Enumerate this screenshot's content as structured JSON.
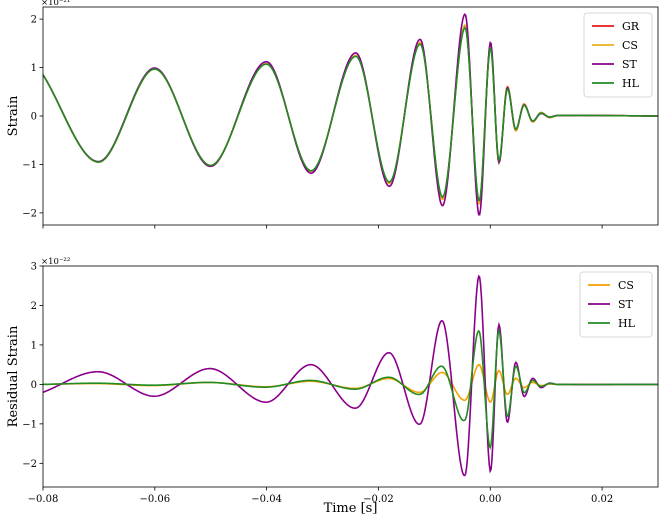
{
  "chart_data": [
    {
      "type": "line",
      "panel": "top",
      "ylabel": "Strain",
      "xlabel": "",
      "multiplier": "×10⁻²¹",
      "xlim": [
        -0.08,
        0.03
      ],
      "ylim": [
        -2.25,
        2.25
      ],
      "yticks": [
        -2,
        -1,
        0,
        1,
        2
      ],
      "xticks": [
        -0.08,
        -0.06,
        -0.04,
        -0.02,
        0.0,
        0.02
      ],
      "show_xtick_labels": false,
      "legend": "top-right",
      "series": [
        {
          "name": "GR",
          "color": "#e41a1c",
          "x": [
            -0.08,
            -0.07,
            -0.06,
            -0.05,
            -0.04,
            -0.032,
            -0.024,
            -0.018,
            -0.0125,
            -0.0085,
            -0.0045,
            -0.002,
            0.0,
            0.0015,
            0.003,
            0.0045,
            0.006,
            0.0075,
            0.009,
            0.0105,
            0.012,
            0.03
          ],
          "y": [
            0.85,
            -0.95,
            0.97,
            -1.02,
            1.08,
            -1.14,
            1.24,
            -1.38,
            1.5,
            -1.7,
            1.85,
            -1.8,
            1.45,
            -0.95,
            0.6,
            -0.3,
            0.25,
            -0.12,
            0.07,
            -0.03,
            0.01,
            0.0
          ]
        },
        {
          "name": "CS",
          "color": "#e8b020",
          "x": [
            -0.08,
            -0.07,
            -0.06,
            -0.05,
            -0.04,
            -0.032,
            -0.024,
            -0.018,
            -0.0125,
            -0.0085,
            -0.0045,
            -0.002,
            0.0,
            0.0015,
            0.003,
            0.0045,
            0.006,
            0.0075,
            0.009,
            0.0105,
            0.012,
            0.03
          ],
          "y": [
            0.85,
            -0.95,
            0.97,
            -1.02,
            1.08,
            -1.14,
            1.25,
            -1.39,
            1.52,
            -1.72,
            1.88,
            -1.82,
            1.47,
            -0.96,
            0.6,
            -0.3,
            0.25,
            -0.12,
            0.07,
            -0.03,
            0.01,
            0.0
          ]
        },
        {
          "name": "ST",
          "color": "#8b008b",
          "x": [
            -0.08,
            -0.07,
            -0.06,
            -0.05,
            -0.04,
            -0.032,
            -0.024,
            -0.018,
            -0.0125,
            -0.0085,
            -0.0045,
            -0.002,
            0.0,
            0.0015,
            0.003,
            0.0045,
            0.006,
            0.0075,
            0.009,
            0.0105,
            0.012,
            0.03
          ],
          "y": [
            0.85,
            -0.94,
            0.99,
            -1.04,
            1.12,
            -1.18,
            1.3,
            -1.45,
            1.58,
            -1.85,
            2.1,
            -2.05,
            1.52,
            -0.95,
            0.58,
            -0.27,
            0.23,
            -0.1,
            0.05,
            -0.02,
            0.01,
            0.0
          ]
        },
        {
          "name": "HL",
          "color": "#228b22",
          "x": [
            -0.08,
            -0.07,
            -0.06,
            -0.05,
            -0.04,
            -0.032,
            -0.024,
            -0.018,
            -0.0125,
            -0.0085,
            -0.0045,
            -0.002,
            0.0,
            0.0015,
            0.003,
            0.0045,
            0.006,
            0.0075,
            0.009,
            0.0105,
            0.012,
            0.03
          ],
          "y": [
            0.85,
            -0.95,
            0.97,
            -1.02,
            1.07,
            -1.13,
            1.23,
            -1.36,
            1.48,
            -1.67,
            1.82,
            -1.75,
            1.4,
            -0.9,
            0.55,
            -0.27,
            0.22,
            -0.1,
            0.06,
            -0.02,
            0.01,
            0.0
          ]
        }
      ]
    },
    {
      "type": "line",
      "panel": "bottom",
      "ylabel": "Residual Strain",
      "xlabel": "Time [s]",
      "multiplier": "×10⁻²²",
      "xlim": [
        -0.08,
        0.03
      ],
      "ylim": [
        -2.6,
        3.0
      ],
      "yticks": [
        -2,
        -1,
        0,
        1,
        2,
        3
      ],
      "xticks": [
        -0.08,
        -0.06,
        -0.04,
        -0.02,
        0.0,
        0.02
      ],
      "xtick_labels": [
        "−0.08",
        "−0.06",
        "−0.04",
        "−0.02",
        "0.00",
        "0.02"
      ],
      "show_xtick_labels": true,
      "legend": "top-right",
      "series": [
        {
          "name": "CS",
          "color": "#f5a000",
          "x": [
            -0.08,
            -0.07,
            -0.06,
            -0.05,
            -0.04,
            -0.032,
            -0.024,
            -0.018,
            -0.0125,
            -0.0085,
            -0.0045,
            -0.002,
            0.0,
            0.0015,
            0.003,
            0.0045,
            0.006,
            0.0075,
            0.009,
            0.0105,
            0.012,
            0.03
          ],
          "y": [
            0.0,
            0.02,
            -0.03,
            0.05,
            -0.06,
            0.08,
            -0.1,
            0.15,
            -0.2,
            0.3,
            -0.4,
            0.5,
            -0.45,
            0.35,
            -0.25,
            0.15,
            -0.08,
            0.05,
            -0.03,
            0.01,
            0.0,
            0.0
          ]
        },
        {
          "name": "ST",
          "color": "#8b008b",
          "x": [
            -0.08,
            -0.07,
            -0.06,
            -0.05,
            -0.04,
            -0.032,
            -0.024,
            -0.018,
            -0.0125,
            -0.0085,
            -0.0045,
            -0.002,
            0.0,
            0.0015,
            0.003,
            0.0045,
            0.006,
            0.0075,
            0.009,
            0.0105,
            0.012,
            0.03
          ],
          "y": [
            -0.2,
            0.32,
            -0.3,
            0.4,
            -0.45,
            0.5,
            -0.6,
            0.8,
            -1.0,
            1.6,
            -2.3,
            2.75,
            -2.2,
            1.5,
            -0.95,
            0.55,
            -0.3,
            0.15,
            -0.08,
            0.03,
            0.0,
            0.0
          ]
        },
        {
          "name": "HL",
          "color": "#228b22",
          "x": [
            -0.08,
            -0.07,
            -0.06,
            -0.05,
            -0.04,
            -0.032,
            -0.024,
            -0.018,
            -0.0125,
            -0.0085,
            -0.0045,
            -0.002,
            0.0,
            0.0015,
            0.003,
            0.0045,
            0.006,
            0.0075,
            0.009,
            0.0105,
            0.012,
            0.03
          ],
          "y": [
            0.0,
            0.03,
            -0.02,
            0.05,
            -0.07,
            0.1,
            -0.12,
            0.18,
            -0.25,
            0.45,
            -0.9,
            1.35,
            -1.6,
            1.35,
            -0.8,
            0.45,
            -0.2,
            0.1,
            -0.05,
            0.02,
            0.0,
            0.0
          ]
        }
      ]
    }
  ]
}
